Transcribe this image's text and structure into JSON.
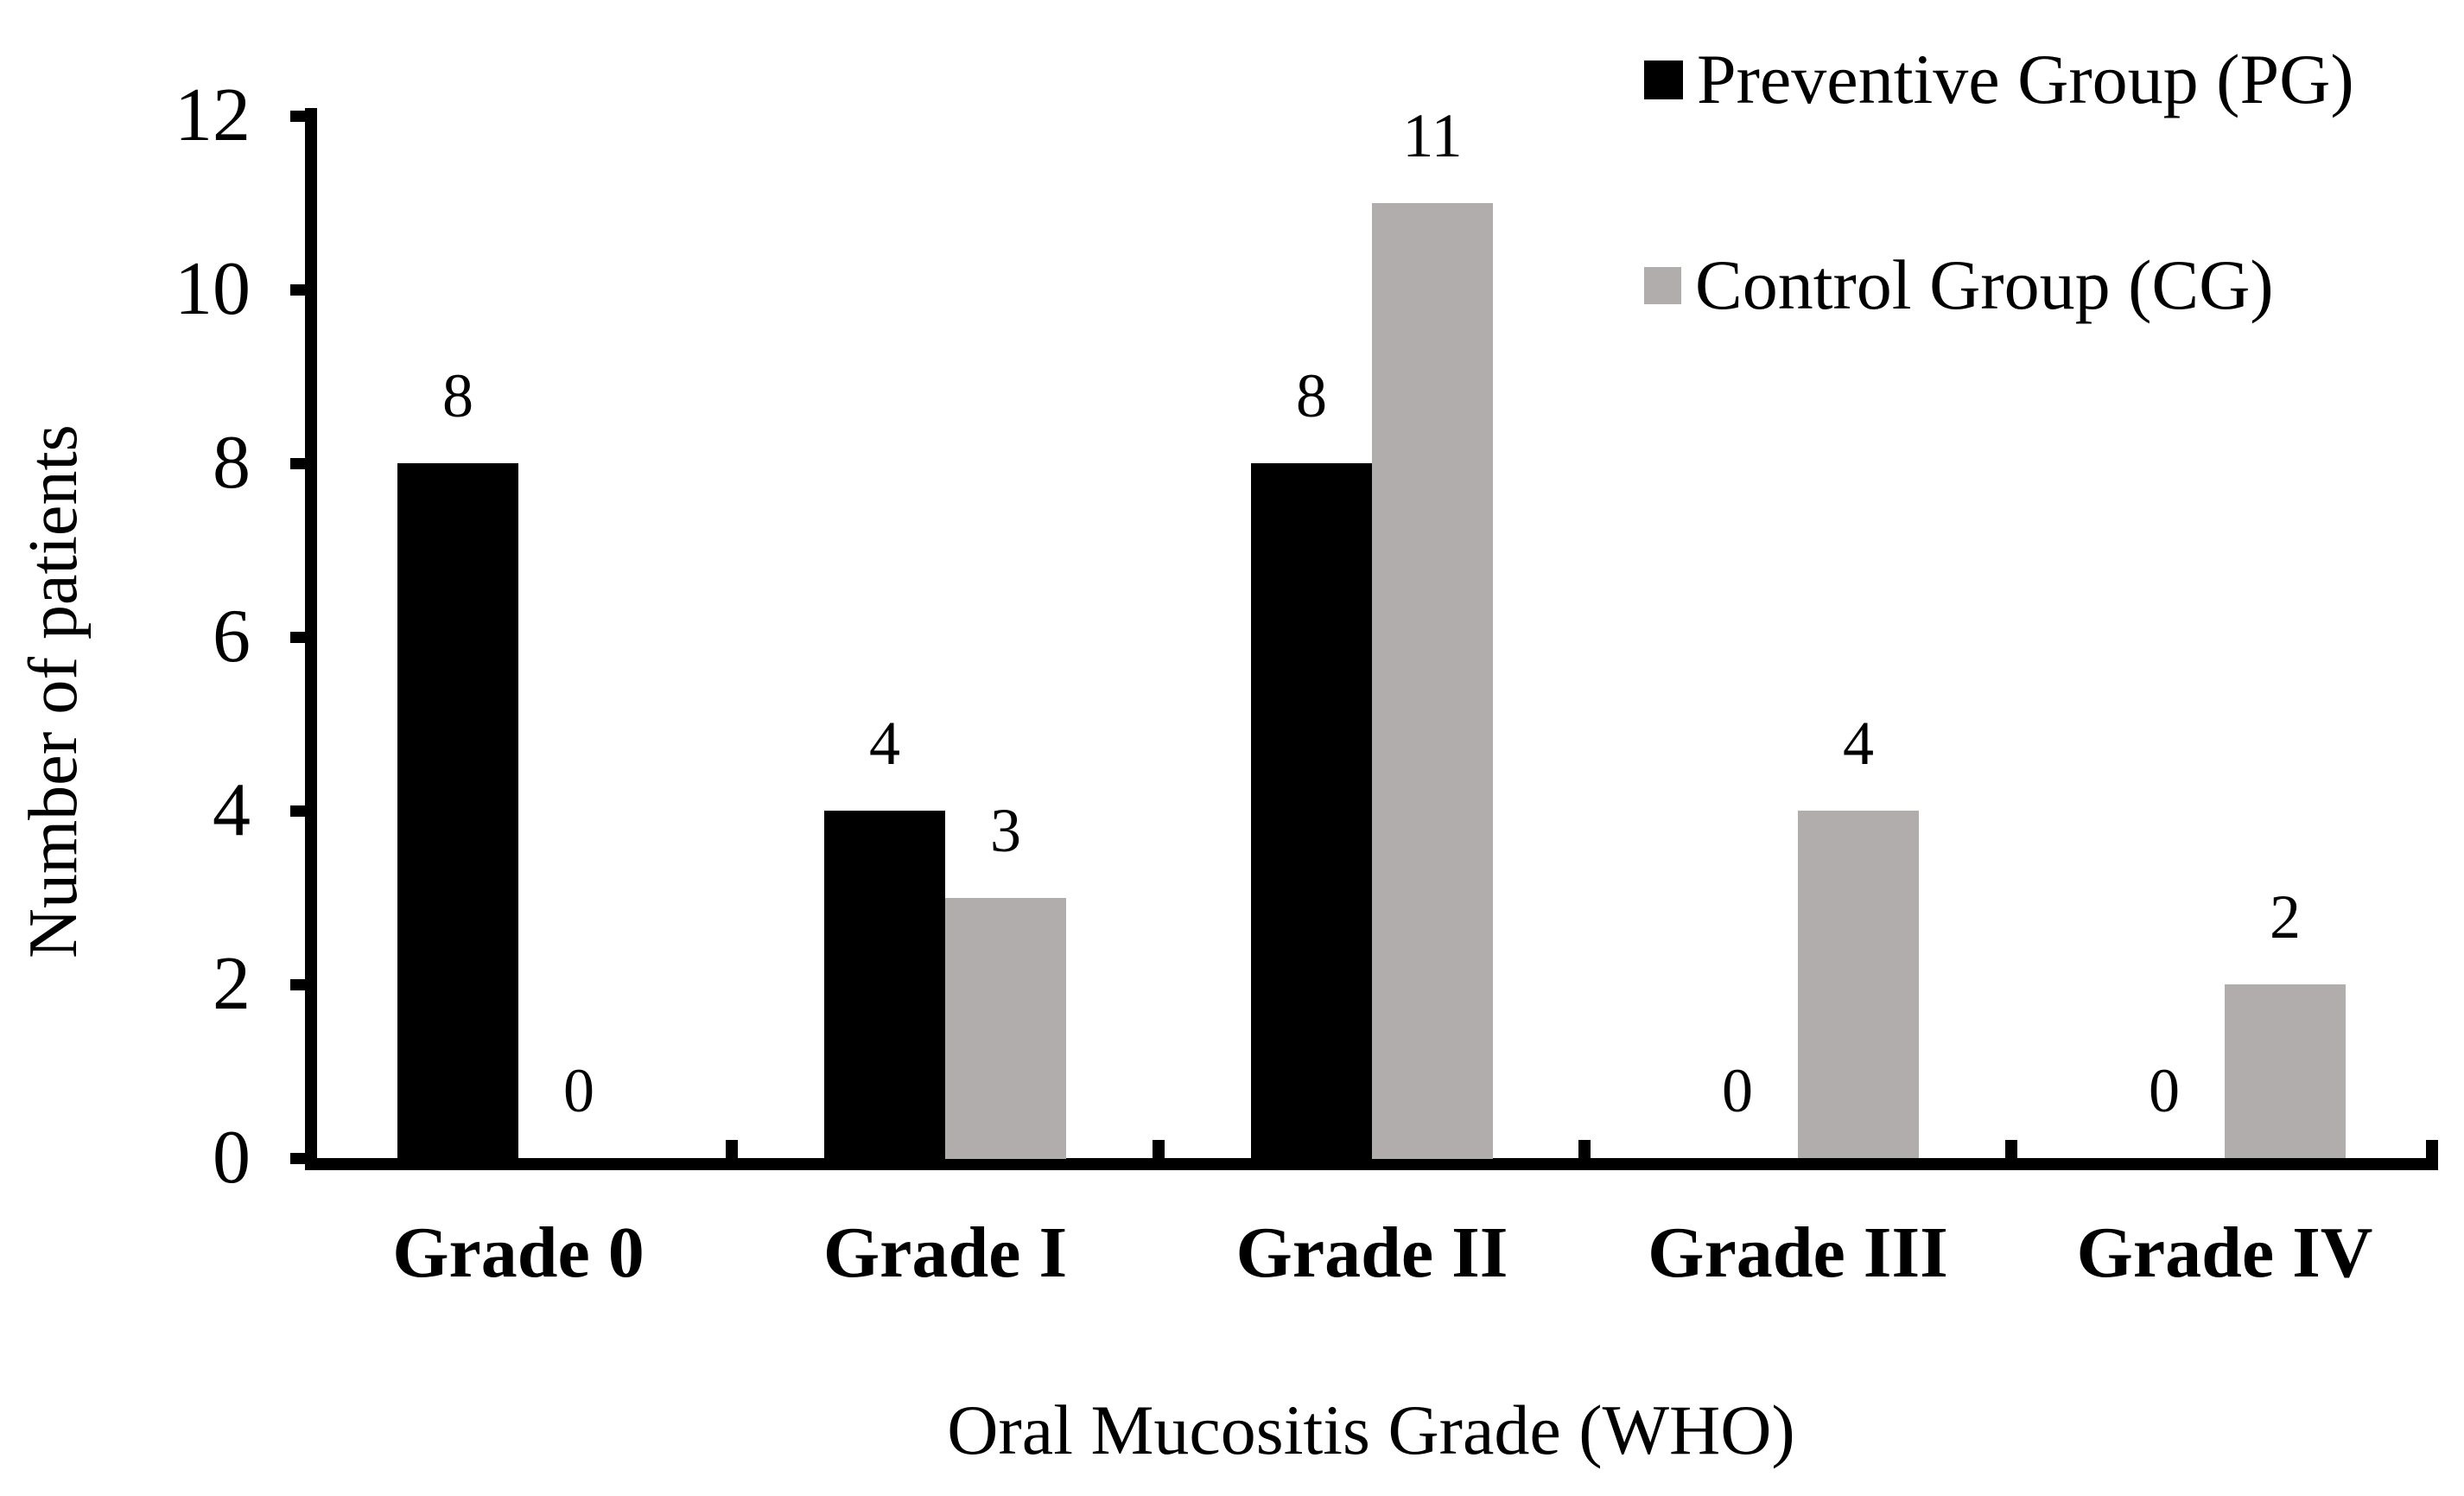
{
  "chart_data": {
    "type": "bar",
    "title": "",
    "xlabel": "Oral Mucositis Grade (WHO)",
    "ylabel": "Number of patients",
    "categories": [
      "Grade 0",
      "Grade I",
      "Grade II",
      "Grade III",
      "Grade IV"
    ],
    "series": [
      {
        "name": "Preventive Group (PG)",
        "color": "#000000",
        "values": [
          8,
          4,
          8,
          0,
          0
        ]
      },
      {
        "name": "Control Group (CG)",
        "color": "#b1adad",
        "values": [
          0,
          3,
          11,
          4,
          2
        ]
      }
    ],
    "ylim": [
      0,
      12
    ],
    "yticks": [
      0,
      2,
      4,
      6,
      8,
      10,
      12
    ],
    "grid": false,
    "data_labels": true,
    "legend_position": "top-right"
  }
}
